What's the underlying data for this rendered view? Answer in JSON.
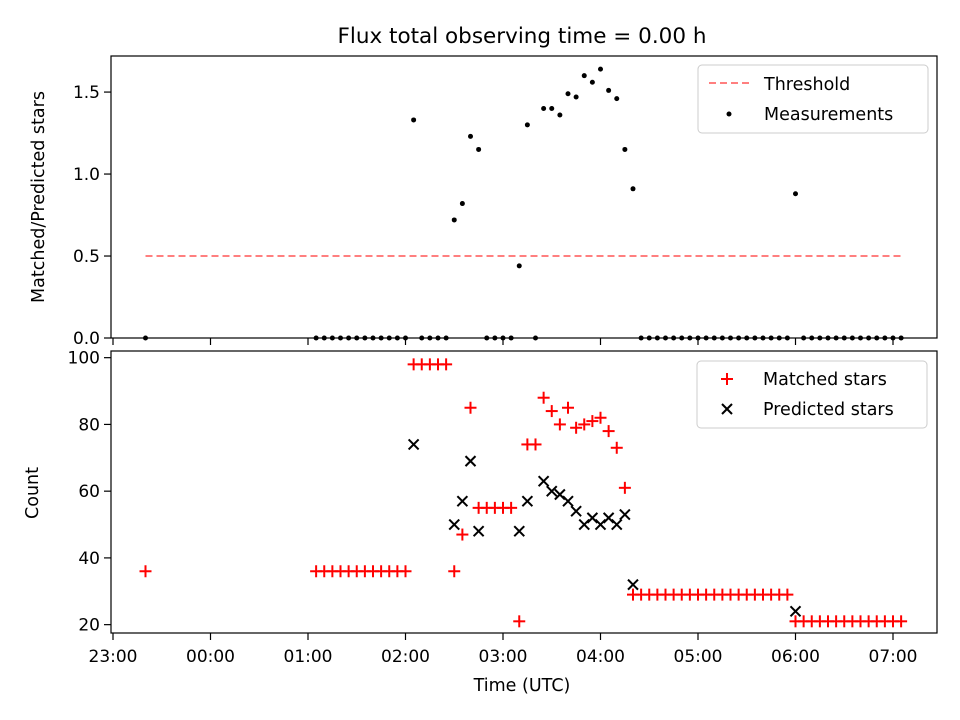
{
  "chart_data": [
    {
      "type": "scatter",
      "title": "Flux total observing time = 0.00 h",
      "ylabel": "Matched/Predicted stars",
      "xlabel": "",
      "ylim": [
        0,
        1.72
      ],
      "yticks": [
        0.0,
        0.5,
        1.0,
        1.5
      ],
      "ytick_labels": [
        "0.0",
        "0.5",
        "1.0",
        "1.5"
      ],
      "grid": false,
      "legend_position": "top-right",
      "series": [
        {
          "name": "Threshold",
          "kind": "dashed-line",
          "color": "#ff7f7f",
          "x": [
            "23:20",
            "07:05"
          ],
          "y": [
            0.5,
            0.5
          ]
        },
        {
          "name": "Measurements",
          "kind": "points",
          "color": "#000000",
          "x": [
            "23:20",
            "01:05",
            "01:10",
            "01:15",
            "01:20",
            "01:25",
            "01:30",
            "01:35",
            "01:40",
            "01:45",
            "01:50",
            "01:55",
            "02:00",
            "02:05",
            "02:10",
            "02:15",
            "02:20",
            "02:25",
            "02:30",
            "02:35",
            "02:40",
            "02:45",
            "02:50",
            "02:55",
            "03:00",
            "03:05",
            "03:10",
            "03:15",
            "03:20",
            "03:25",
            "03:30",
            "03:35",
            "03:40",
            "03:45",
            "03:50",
            "03:55",
            "04:00",
            "04:05",
            "04:10",
            "04:15",
            "04:20",
            "04:25",
            "04:30",
            "04:35",
            "04:40",
            "04:45",
            "04:50",
            "04:55",
            "05:00",
            "05:05",
            "05:10",
            "05:15",
            "05:20",
            "05:25",
            "05:30",
            "05:35",
            "05:40",
            "05:45",
            "05:50",
            "05:55",
            "06:00",
            "06:05",
            "06:10",
            "06:15",
            "06:20",
            "06:25",
            "06:30",
            "06:35",
            "06:40",
            "06:45",
            "06:50",
            "06:55",
            "07:00",
            "07:05"
          ],
          "y": [
            0,
            0,
            0,
            0,
            0,
            0,
            0,
            0,
            0,
            0,
            0,
            0,
            0,
            1.33,
            0,
            0,
            0,
            0,
            0.72,
            0.82,
            1.23,
            1.15,
            0,
            0,
            0,
            0,
            0.44,
            1.3,
            0,
            1.4,
            1.4,
            1.36,
            1.49,
            1.47,
            1.6,
            1.56,
            1.64,
            1.51,
            1.46,
            1.15,
            0.91,
            0,
            0,
            0,
            0,
            0,
            0,
            0,
            0,
            0,
            0,
            0,
            0,
            0,
            0,
            0,
            0,
            0,
            0,
            0,
            0.88,
            0,
            0,
            0,
            0,
            0,
            0,
            0,
            0,
            0,
            0,
            0,
            0,
            0
          ]
        }
      ]
    },
    {
      "type": "scatter",
      "title": "",
      "ylabel": "Count",
      "xlabel": "Time (UTC)",
      "ylim": [
        17.5,
        102
      ],
      "yticks": [
        20,
        40,
        60,
        80,
        100
      ],
      "ytick_labels": [
        "20",
        "40",
        "60",
        "80",
        "100"
      ],
      "xticks": [
        "23:00",
        "00:00",
        "01:00",
        "02:00",
        "03:00",
        "04:00",
        "05:00",
        "06:00",
        "07:00"
      ],
      "grid": false,
      "legend_position": "top-right",
      "series": [
        {
          "name": "Matched stars",
          "marker": "+",
          "color": "#ff0000",
          "x": [
            "23:20",
            "01:05",
            "01:10",
            "01:15",
            "01:20",
            "01:25",
            "01:30",
            "01:35",
            "01:40",
            "01:45",
            "01:50",
            "01:55",
            "02:00",
            "02:05",
            "02:10",
            "02:15",
            "02:20",
            "02:25",
            "02:30",
            "02:35",
            "02:40",
            "02:45",
            "02:50",
            "02:55",
            "03:00",
            "03:05",
            "03:10",
            "03:15",
            "03:20",
            "03:25",
            "03:30",
            "03:35",
            "03:40",
            "03:45",
            "03:50",
            "03:55",
            "04:00",
            "04:05",
            "04:10",
            "04:15",
            "04:20",
            "04:25",
            "04:30",
            "04:35",
            "04:40",
            "04:45",
            "04:50",
            "04:55",
            "05:00",
            "05:05",
            "05:10",
            "05:15",
            "05:20",
            "05:25",
            "05:30",
            "05:35",
            "05:40",
            "05:45",
            "05:50",
            "05:55",
            "06:00",
            "06:05",
            "06:10",
            "06:15",
            "06:20",
            "06:25",
            "06:30",
            "06:35",
            "06:40",
            "06:45",
            "06:50",
            "06:55",
            "07:00",
            "07:05"
          ],
          "y": [
            36,
            36,
            36,
            36,
            36,
            36,
            36,
            36,
            36,
            36,
            36,
            36,
            36,
            98,
            98,
            98,
            98,
            98,
            36,
            47,
            85,
            55,
            55,
            55,
            55,
            55,
            21,
            74,
            74,
            88,
            84,
            80,
            85,
            79,
            80,
            81,
            82,
            78,
            73,
            61,
            29,
            29,
            29,
            29,
            29,
            29,
            29,
            29,
            29,
            29,
            29,
            29,
            29,
            29,
            29,
            29,
            29,
            29,
            29,
            29,
            21,
            21,
            21,
            21,
            21,
            21,
            21,
            21,
            21,
            21,
            21,
            21,
            21,
            21
          ]
        },
        {
          "name": "Predicted stars",
          "marker": "x",
          "color": "#000000",
          "x": [
            "02:05",
            "02:30",
            "02:35",
            "02:40",
            "02:45",
            "03:10",
            "03:15",
            "03:25",
            "03:30",
            "03:35",
            "03:40",
            "03:45",
            "03:50",
            "03:55",
            "04:00",
            "04:05",
            "04:10",
            "04:15",
            "04:20",
            "06:00"
          ],
          "y": [
            74,
            50,
            57,
            69,
            48,
            48,
            57,
            63,
            60,
            59,
            57,
            54,
            50,
            52,
            50,
            52,
            50,
            53,
            32,
            24
          ]
        }
      ]
    }
  ]
}
